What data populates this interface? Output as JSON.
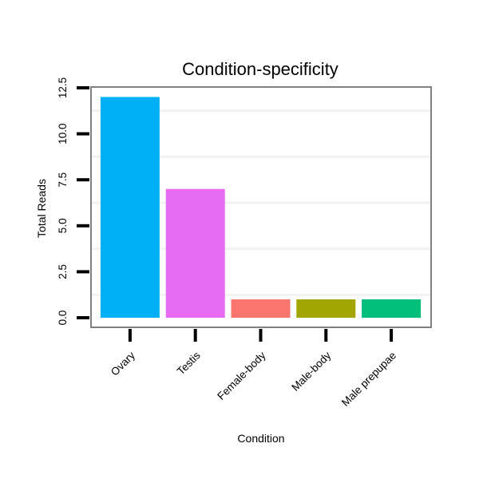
{
  "chart_data": {
    "type": "bar",
    "title": "Condition-specificity",
    "xlabel": "Condition",
    "ylabel": "Total Reads",
    "categories": [
      "Ovary",
      "Testis",
      "Female-body",
      "Male-body",
      "Male prepupae"
    ],
    "values": [
      12,
      7,
      1,
      1,
      1
    ],
    "colors": [
      "#00B0F6",
      "#E76BF3",
      "#F8766D",
      "#A3A500",
      "#00BF7D"
    ],
    "ylim": [
      0,
      12.5
    ],
    "yticks": [
      0,
      2.5,
      5,
      7.5,
      10,
      12.5
    ],
    "ytick_labels": [
      "0.0",
      "2.5",
      "5.0",
      "7.5",
      "10.0",
      "12.5"
    ],
    "grid": true
  }
}
